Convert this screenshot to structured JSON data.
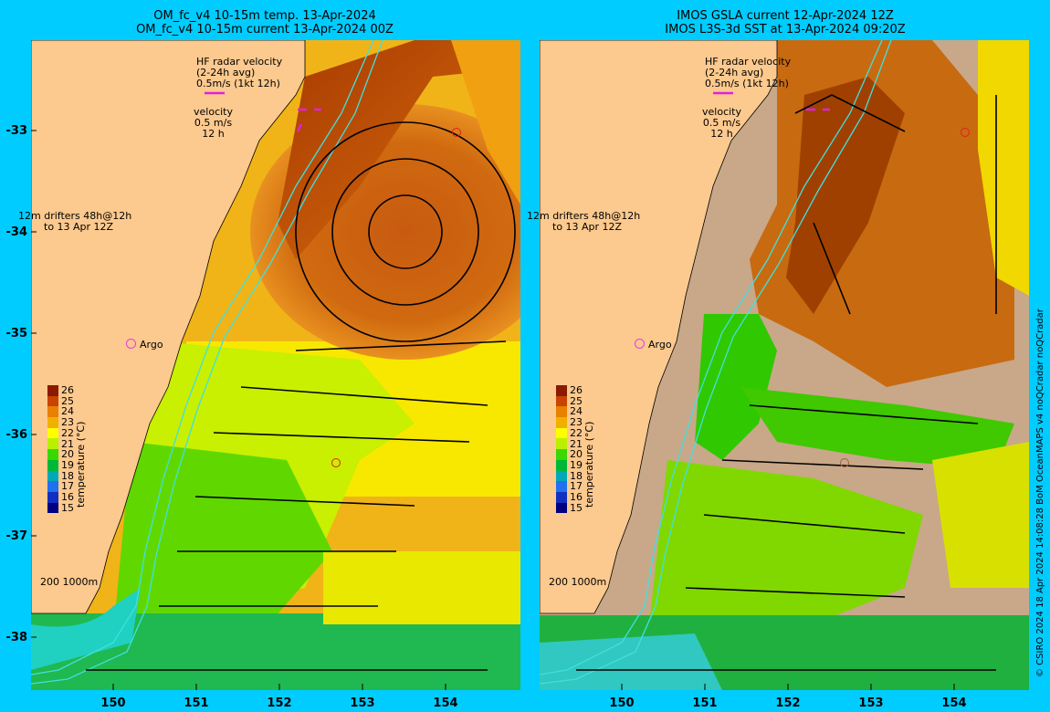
{
  "left_panel": {
    "title_line1": "OM_fc_v4  10-15m temp. 13-Apr-2024",
    "title_line2": "OM_fc_v4  10-15m current 13-Apr-2024 00Z",
    "hf_radar_label": "HF radar velocity",
    "hf_radar_avg": "(2-24h avg)",
    "hf_radar_scale": "0.5m/s (1kt 12h)",
    "velocity_label": "velocity",
    "velocity_scale": "0.5 m/s",
    "velocity_time": "12 h",
    "drifters_label": "12m drifters 48h@12h",
    "drifters_time": "to 13 Apr 12Z",
    "argo_label": "Argo",
    "isobath_label": "200  1000m"
  },
  "right_panel": {
    "title_line1": "IMOS GSLA current 12-Apr-2024 12Z",
    "title_line2": "IMOS L3S-3d SST at 13-Apr-2024 09:20Z",
    "hf_radar_label": "HF radar velocity",
    "hf_radar_avg": "(2-24h avg)",
    "hf_radar_scale": "0.5m/s (1kt 12h)",
    "velocity_label": "velocity",
    "velocity_scale": "0.5 m/s",
    "velocity_time": "12 h",
    "drifters_label": "12m drifters 48h@12h",
    "drifters_time": "to 13 Apr 12Z",
    "argo_label": "Argo",
    "isobath_label": "200  1000m"
  },
  "latitude_ticks": [
    "-33",
    "-34",
    "-35",
    "-36",
    "-37",
    "-38"
  ],
  "longitude_ticks": [
    "150",
    "151",
    "152",
    "153",
    "154"
  ],
  "colorbar": {
    "title": "temperature (°C)",
    "ticks": [
      "26",
      "25",
      "24",
      "23",
      "22",
      "21",
      "20",
      "19",
      "18",
      "17",
      "16",
      "15"
    ],
    "colors": [
      "#8b1a00",
      "#c84400",
      "#e88000",
      "#f0b000",
      "#ffff00",
      "#b8f000",
      "#38d800",
      "#00b838",
      "#00a8b8",
      "#2070f0",
      "#1030c0",
      "#000080"
    ]
  },
  "side_credit": "© CSIRO 2024   18 Apr 2024 14:08:28 BoM OceanMAPS v4 noQCradar noQCradar",
  "colors": {
    "background": "#00ccff",
    "land": "#fcc98e",
    "no_data": "#c8a888",
    "isobath": "#40e0e0",
    "hf_radar": "#e020e0"
  }
}
